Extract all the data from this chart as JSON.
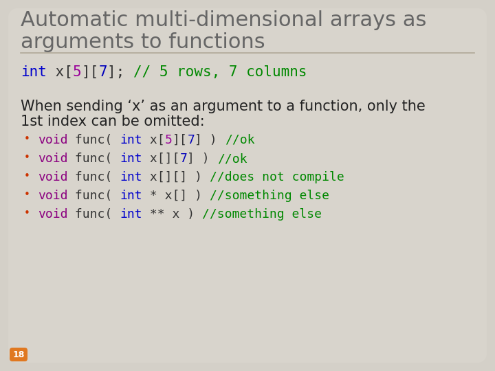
{
  "bg_color": "#d4d0c8",
  "title_color": "#666666",
  "title_fontsize": 22,
  "code_parts": [
    {
      "t": "int",
      "c": "#0000cc"
    },
    {
      "t": " x[",
      "c": "#333333"
    },
    {
      "t": "5",
      "c": "#990099"
    },
    {
      "t": "][",
      "c": "#333333"
    },
    {
      "t": "7",
      "c": "#0000bb"
    },
    {
      "t": "]; ",
      "c": "#333333"
    },
    {
      "t": "// 5 rows, 7 columns",
      "c": "#008800"
    }
  ],
  "code_fontsize": 15,
  "body_text1": "When sending ‘x’ as an argument to a function, only the",
  "body_text2": "1st index can be omitted:",
  "body_color": "#222222",
  "body_fontsize": 15,
  "bullet_color": "#cc3300",
  "bullet_items": [
    [
      {
        "t": "void",
        "c": "#8B0080"
      },
      {
        "t": " func( ",
        "c": "#333333"
      },
      {
        "t": "int",
        "c": "#0000cc"
      },
      {
        "t": " x[",
        "c": "#333333"
      },
      {
        "t": "5",
        "c": "#990099"
      },
      {
        "t": "][",
        "c": "#333333"
      },
      {
        "t": "7",
        "c": "#0000bb"
      },
      {
        "t": "] ) ",
        "c": "#333333"
      },
      {
        "t": "//ok",
        "c": "#008800"
      }
    ],
    [
      {
        "t": "void",
        "c": "#8B0080"
      },
      {
        "t": " func( ",
        "c": "#333333"
      },
      {
        "t": "int",
        "c": "#0000cc"
      },
      {
        "t": " x[][",
        "c": "#333333"
      },
      {
        "t": "7",
        "c": "#0000bb"
      },
      {
        "t": "] ) ",
        "c": "#333333"
      },
      {
        "t": "//ok",
        "c": "#008800"
      }
    ],
    [
      {
        "t": "void",
        "c": "#8B0080"
      },
      {
        "t": " func( ",
        "c": "#333333"
      },
      {
        "t": "int",
        "c": "#0000cc"
      },
      {
        "t": " x[][] ) ",
        "c": "#333333"
      },
      {
        "t": "//does not compile",
        "c": "#008800"
      }
    ],
    [
      {
        "t": "void",
        "c": "#8B0080"
      },
      {
        "t": " func( ",
        "c": "#333333"
      },
      {
        "t": "int",
        "c": "#0000cc"
      },
      {
        "t": " * x[] ) ",
        "c": "#333333"
      },
      {
        "t": "//something else",
        "c": "#008800"
      }
    ],
    [
      {
        "t": "void",
        "c": "#8B0080"
      },
      {
        "t": " func( ",
        "c": "#333333"
      },
      {
        "t": "int",
        "c": "#0000cc"
      },
      {
        "t": " ** x ) ",
        "c": "#333333"
      },
      {
        "t": "//something else",
        "c": "#008800"
      }
    ]
  ],
  "bullet_fontsize": 13,
  "page_num": "18",
  "page_bg": "#e07820",
  "page_color": "#ffffff",
  "page_fontsize": 9
}
